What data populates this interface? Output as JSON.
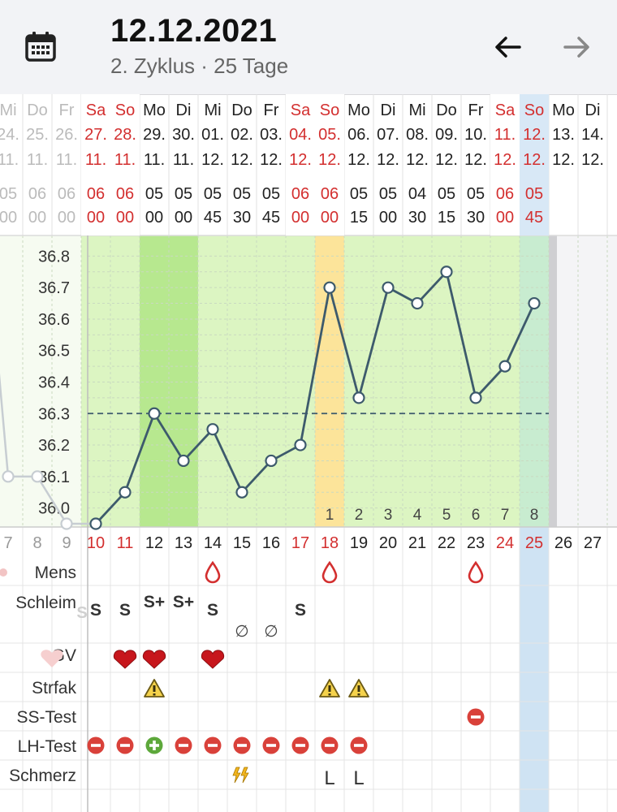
{
  "header": {
    "date": "12.12.2021",
    "subtitle": "2. Zyklus · 25 Tage",
    "calendar_icon": "calendar-icon",
    "back_icon": "arrow-left-icon",
    "forward_icon": "arrow-right-icon"
  },
  "colors": {
    "weekend_red": "#d32f2f",
    "line": "#3d5a6c",
    "fertile_green": "#dcf5c2",
    "peak_green": "#b7e88f",
    "ovulation_yellow": "#fce49a",
    "today_blue": "#cfe3f3"
  },
  "days": [
    {
      "wd": "Mi",
      "date": "24.",
      "month": "11.",
      "time_h": "05",
      "time_m": "00",
      "cycle_day": "7",
      "we": false
    },
    {
      "wd": "Do",
      "date": "25.",
      "month": "11.",
      "time_h": "06",
      "time_m": "00",
      "cycle_day": "8",
      "we": false
    },
    {
      "wd": "Fr",
      "date": "26.",
      "month": "11.",
      "time_h": "06",
      "time_m": "00",
      "cycle_day": "9",
      "we": false
    },
    {
      "wd": "Sa",
      "date": "27.",
      "month": "11.",
      "time_h": "06",
      "time_m": "00",
      "cycle_day": "10",
      "we": true
    },
    {
      "wd": "So",
      "date": "28.",
      "month": "11.",
      "time_h": "06",
      "time_m": "00",
      "cycle_day": "11",
      "we": true
    },
    {
      "wd": "Mo",
      "date": "29.",
      "month": "11.",
      "time_h": "05",
      "time_m": "00",
      "cycle_day": "12",
      "we": false
    },
    {
      "wd": "Di",
      "date": "30.",
      "month": "11.",
      "time_h": "05",
      "time_m": "00",
      "cycle_day": "13",
      "we": false
    },
    {
      "wd": "Mi",
      "date": "01.",
      "month": "12.",
      "time_h": "05",
      "time_m": "45",
      "cycle_day": "14",
      "we": false
    },
    {
      "wd": "Do",
      "date": "02.",
      "month": "12.",
      "time_h": "05",
      "time_m": "30",
      "cycle_day": "15",
      "we": false
    },
    {
      "wd": "Fr",
      "date": "03.",
      "month": "12.",
      "time_h": "05",
      "time_m": "45",
      "cycle_day": "16",
      "we": false
    },
    {
      "wd": "Sa",
      "date": "04.",
      "month": "12.",
      "time_h": "06",
      "time_m": "00",
      "cycle_day": "17",
      "we": true
    },
    {
      "wd": "So",
      "date": "05.",
      "month": "12.",
      "time_h": "06",
      "time_m": "00",
      "cycle_day": "18",
      "we": true
    },
    {
      "wd": "Mo",
      "date": "06.",
      "month": "12.",
      "time_h": "05",
      "time_m": "15",
      "cycle_day": "19",
      "we": false
    },
    {
      "wd": "Di",
      "date": "07.",
      "month": "12.",
      "time_h": "05",
      "time_m": "00",
      "cycle_day": "20",
      "we": false
    },
    {
      "wd": "Mi",
      "date": "08.",
      "month": "12.",
      "time_h": "04",
      "time_m": "30",
      "cycle_day": "21",
      "we": false
    },
    {
      "wd": "Do",
      "date": "09.",
      "month": "12.",
      "time_h": "05",
      "time_m": "15",
      "cycle_day": "22",
      "we": false
    },
    {
      "wd": "Fr",
      "date": "10.",
      "month": "12.",
      "time_h": "05",
      "time_m": "30",
      "cycle_day": "23",
      "we": false
    },
    {
      "wd": "Sa",
      "date": "11.",
      "month": "12.",
      "time_h": "06",
      "time_m": "00",
      "cycle_day": "24",
      "we": true
    },
    {
      "wd": "So",
      "date": "12.",
      "month": "12.",
      "time_h": "05",
      "time_m": "45",
      "cycle_day": "25",
      "we": true
    },
    {
      "wd": "Mo",
      "date": "13.",
      "month": "12.",
      "time_h": "",
      "time_m": "",
      "cycle_day": "26",
      "we": false
    },
    {
      "wd": "Di",
      "date": "14.",
      "month": "12.",
      "time_h": "",
      "time_m": "",
      "cycle_day": "27",
      "we": false
    }
  ],
  "chart_data": {
    "type": "line",
    "y_tick_labels": [
      "36.0",
      "36.1",
      "36.2",
      "36.3",
      "36.4",
      "36.5",
      "36.6",
      "36.7",
      "36.8"
    ],
    "ylim": [
      35.95,
      36.85
    ],
    "x": [
      "7",
      "8",
      "9",
      "10",
      "11",
      "12",
      "13",
      "14",
      "15",
      "16",
      "17",
      "18",
      "19",
      "20",
      "21",
      "22",
      "23",
      "24",
      "25"
    ],
    "series": [
      {
        "values": [
          36.1,
          36.1,
          35.95,
          35.95,
          36.05,
          36.3,
          36.15,
          36.25,
          36.05,
          36.15,
          36.2,
          36.7,
          36.35,
          36.7,
          36.65,
          36.75,
          36.35,
          36.45,
          36.65
        ]
      }
    ],
    "coverline": 36.3,
    "post_ovulation_labels": [
      "1",
      "2",
      "3",
      "4",
      "5",
      "6",
      "7",
      "8"
    ],
    "grid": true
  },
  "rows": [
    {
      "label": "Mens"
    },
    {
      "label": "Schleim"
    },
    {
      "label": "GV"
    },
    {
      "label": "Strfak"
    },
    {
      "label": "SS-Test"
    },
    {
      "label": "LH-Test"
    },
    {
      "label": "Schmerz"
    }
  ],
  "events": {
    "mens": [
      {
        "day": "14",
        "icon": "drop-icon"
      },
      {
        "day": "18",
        "icon": "drop-icon"
      },
      {
        "day": "23",
        "icon": "drop-icon"
      }
    ],
    "schleim": [
      {
        "day": "10",
        "text": "S"
      },
      {
        "day": "11",
        "text": "S"
      },
      {
        "day": "12",
        "text": "S+"
      },
      {
        "day": "13",
        "text": "S+"
      },
      {
        "day": "14",
        "text": "S"
      },
      {
        "day": "15",
        "text": "∅"
      },
      {
        "day": "16",
        "text": "∅"
      },
      {
        "day": "17",
        "text": "S"
      }
    ],
    "gv": [
      {
        "day": "11",
        "icon": "heart-icon"
      },
      {
        "day": "12",
        "icon": "heart-icon"
      },
      {
        "day": "14",
        "icon": "heart-icon"
      }
    ],
    "strfak": [
      {
        "day": "12",
        "icon": "warning-icon"
      },
      {
        "day": "18",
        "icon": "warning-icon"
      },
      {
        "day": "19",
        "icon": "warning-icon"
      }
    ],
    "ss_test": [
      {
        "day": "23",
        "result": "negative"
      }
    ],
    "lh_test": [
      {
        "day": "10",
        "result": "negative"
      },
      {
        "day": "11",
        "result": "negative"
      },
      {
        "day": "12",
        "result": "positive"
      },
      {
        "day": "13",
        "result": "negative"
      },
      {
        "day": "14",
        "result": "negative"
      },
      {
        "day": "15",
        "result": "negative"
      },
      {
        "day": "16",
        "result": "negative"
      },
      {
        "day": "17",
        "result": "negative"
      },
      {
        "day": "18",
        "result": "negative"
      },
      {
        "day": "19",
        "result": "negative"
      }
    ],
    "schmerz": [
      {
        "day": "15",
        "icon": "lightning-icon"
      },
      {
        "day": "18",
        "text": "L"
      },
      {
        "day": "19",
        "text": "L"
      }
    ]
  }
}
